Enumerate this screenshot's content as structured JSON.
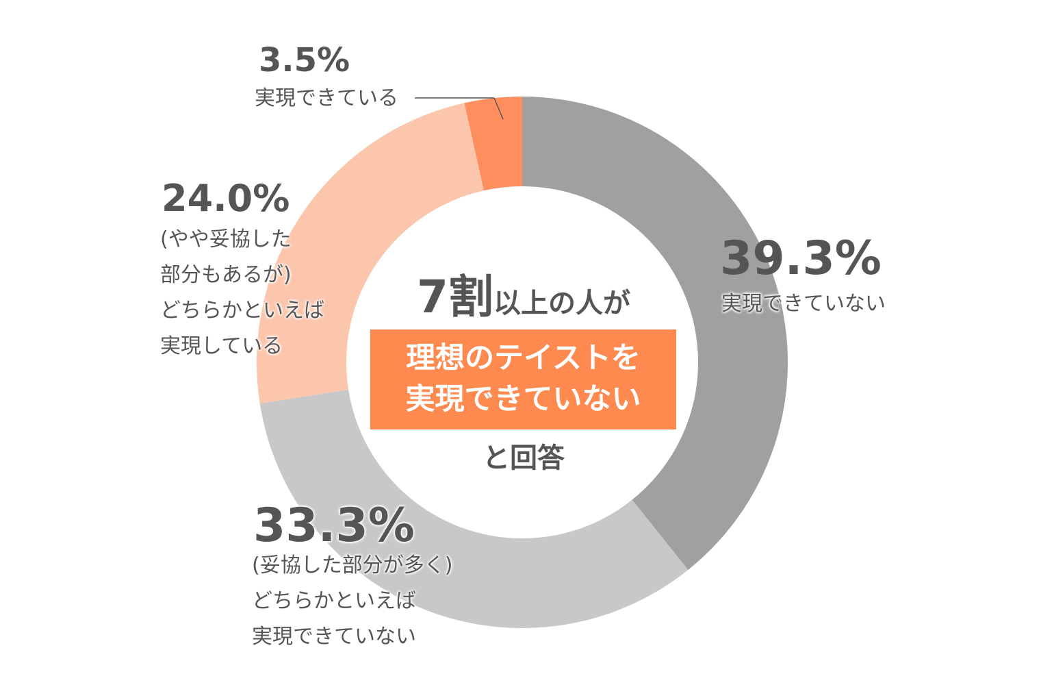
{
  "chart_data": {
    "type": "pie",
    "style": "donut",
    "segments": [
      {
        "value": 39.3,
        "percent_label": "39.3%",
        "label_lines": [
          "実現できていない"
        ],
        "color": "#A0A0A0"
      },
      {
        "value": 33.3,
        "percent_label": "33.3%",
        "label_lines": [
          "(妥協した部分が多く)",
          "どちらかといえば",
          "実現できていない"
        ],
        "color": "#C8C8C8"
      },
      {
        "value": 24.0,
        "percent_label": "24.0%",
        "label_lines": [
          "(やや妥協した",
          "部分もあるが)",
          "どちらかといえば",
          "実現している"
        ],
        "color": "#FCC6AD"
      },
      {
        "value": 3.5,
        "percent_label": "3.5%",
        "label_lines": [
          "実現できている"
        ],
        "color": "#FF8E5F"
      }
    ],
    "start": "top",
    "direction": "clockwise"
  },
  "center": {
    "headline_big": "7割",
    "headline_small": "以上の人が",
    "highlight_lines": [
      "理想のテイストを",
      "実現できていない"
    ],
    "footer": "と回答",
    "highlight_color": "#FF8A50"
  }
}
